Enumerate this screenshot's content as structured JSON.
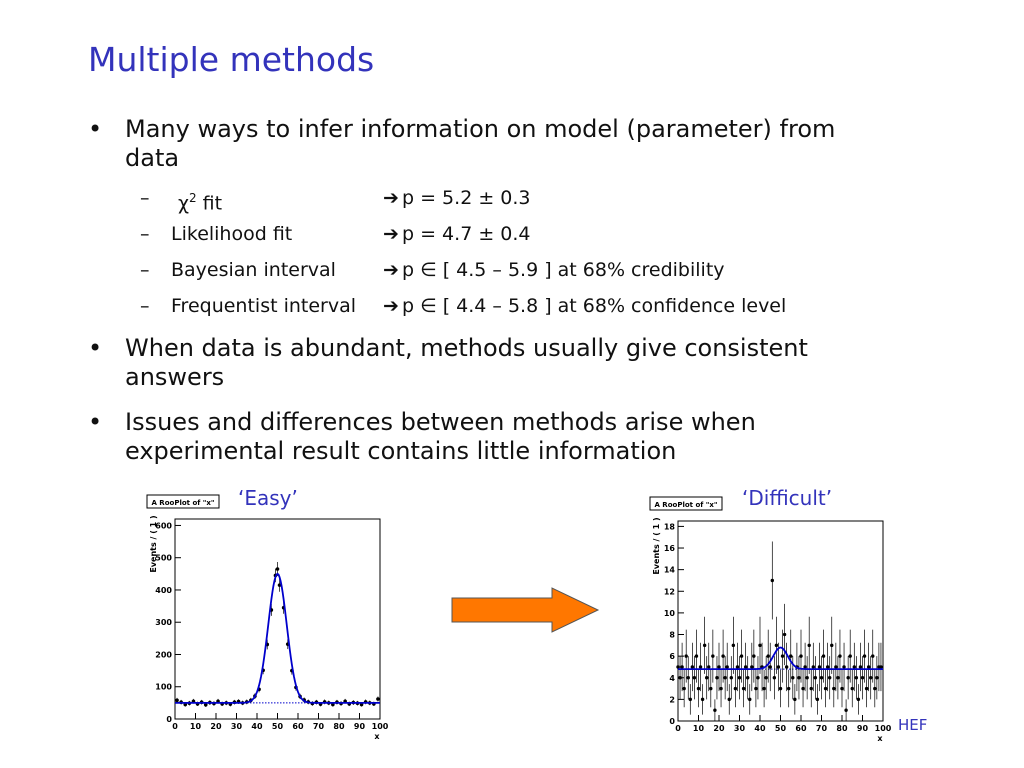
{
  "slide": {
    "title": "Multiple methods",
    "bullets": [
      "Many ways to infer information on model (parameter) from",
      "data",
      "When data is abundant, methods usually give consistent",
      "answers",
      "Issues and differences between methods arise when",
      "experimental result contains little information"
    ],
    "bullet_symbol": "•",
    "methods": [
      {
        "dash": "–",
        "name_prefix": "χ",
        "name_sup": "2",
        "name_suffix": " fit",
        "arrow": "➔",
        "result": "p = 5.2 ± 0.3"
      },
      {
        "dash": "–",
        "name_prefix": "Likelihood fit",
        "name_sup": "",
        "name_suffix": "",
        "arrow": "➔",
        "result": "p = 4.7 ± 0.4"
      },
      {
        "dash": "–",
        "name_prefix": "Bayesian interval",
        "name_sup": "",
        "name_suffix": "",
        "arrow": "➔",
        "result": "p ∈ [ 4.5 – 5.9 ] at 68% credibility"
      },
      {
        "dash": "–",
        "name_prefix": "Frequentist interval",
        "name_sup": "",
        "name_suffix": "",
        "arrow": "➔",
        "result": "p ∈ [ 4.4 – 5.8 ] at 68% confidence level"
      }
    ],
    "captions": {
      "easy": "‘Easy’",
      "difficult": "‘Difficult’"
    },
    "footer": "HEF",
    "colors": {
      "title": "#3333bb",
      "curve": "#0000cc",
      "arrow_fill": "#ff7700"
    }
  },
  "chart_data": [
    {
      "type": "scatter",
      "title": "A RooPlot of \"x\"",
      "xlabel": "x",
      "ylabel": "Events / ( 1 )",
      "xlim": [
        0,
        100
      ],
      "ylim": [
        0,
        620
      ],
      "xticks": [
        0,
        10,
        20,
        30,
        40,
        50,
        60,
        70,
        80,
        90,
        100
      ],
      "yticks": [
        0,
        100,
        200,
        300,
        400,
        500,
        600
      ],
      "model": {
        "background": 50,
        "peak_mean": 50,
        "peak_sigma": 4.5,
        "peak_amplitude": 400
      },
      "points": [
        [
          1,
          58
        ],
        [
          3,
          52
        ],
        [
          5,
          45
        ],
        [
          7,
          49
        ],
        [
          9,
          55
        ],
        [
          11,
          47
        ],
        [
          13,
          52
        ],
        [
          15,
          44
        ],
        [
          17,
          51
        ],
        [
          19,
          48
        ],
        [
          21,
          55
        ],
        [
          23,
          47
        ],
        [
          25,
          50
        ],
        [
          27,
          46
        ],
        [
          29,
          52
        ],
        [
          31,
          54
        ],
        [
          33,
          50
        ],
        [
          35,
          53
        ],
        [
          37,
          58
        ],
        [
          39,
          71
        ],
        [
          41,
          92
        ],
        [
          43,
          151
        ],
        [
          45,
          231
        ],
        [
          47,
          338
        ],
        [
          49,
          445
        ],
        [
          50,
          465
        ],
        [
          51,
          415
        ],
        [
          53,
          345
        ],
        [
          55,
          232
        ],
        [
          57,
          150
        ],
        [
          59,
          98
        ],
        [
          61,
          70
        ],
        [
          63,
          59
        ],
        [
          65,
          53
        ],
        [
          67,
          48
        ],
        [
          69,
          52
        ],
        [
          71,
          46
        ],
        [
          73,
          53
        ],
        [
          75,
          50
        ],
        [
          77,
          45
        ],
        [
          79,
          52
        ],
        [
          81,
          48
        ],
        [
          83,
          55
        ],
        [
          85,
          47
        ],
        [
          87,
          51
        ],
        [
          89,
          49
        ],
        [
          91,
          45
        ],
        [
          93,
          53
        ],
        [
          95,
          50
        ],
        [
          97,
          47
        ],
        [
          99,
          62
        ]
      ]
    },
    {
      "type": "scatter",
      "title": "A RooPlot of \"x\"",
      "xlabel": "x",
      "ylabel": "Events / ( 1 )",
      "xlim": [
        0,
        100
      ],
      "ylim": [
        0,
        18.5
      ],
      "xticks": [
        0,
        10,
        20,
        30,
        40,
        50,
        60,
        70,
        80,
        90,
        100
      ],
      "yticks": [
        0,
        2,
        4,
        6,
        8,
        10,
        12,
        14,
        16,
        18
      ],
      "model": {
        "background": 4.8,
        "peak_mean": 50,
        "peak_sigma": 3.5,
        "peak_amplitude": 2.0
      },
      "points": [
        [
          0,
          5
        ],
        [
          1,
          4
        ],
        [
          2,
          5
        ],
        [
          3,
          3
        ],
        [
          4,
          6
        ],
        [
          5,
          4
        ],
        [
          6,
          2
        ],
        [
          7,
          5
        ],
        [
          8,
          4
        ],
        [
          9,
          6
        ],
        [
          10,
          3
        ],
        [
          11,
          5
        ],
        [
          12,
          2
        ],
        [
          13,
          7
        ],
        [
          14,
          4
        ],
        [
          15,
          5
        ],
        [
          16,
          3
        ],
        [
          17,
          6
        ],
        [
          18,
          1
        ],
        [
          19,
          4
        ],
        [
          20,
          5
        ],
        [
          21,
          3
        ],
        [
          22,
          6
        ],
        [
          23,
          4
        ],
        [
          24,
          5
        ],
        [
          25,
          2
        ],
        [
          26,
          4
        ],
        [
          27,
          7
        ],
        [
          28,
          3
        ],
        [
          29,
          5
        ],
        [
          30,
          4
        ],
        [
          31,
          6
        ],
        [
          32,
          3
        ],
        [
          33,
          5
        ],
        [
          34,
          4
        ],
        [
          35,
          2
        ],
        [
          36,
          5
        ],
        [
          37,
          6
        ],
        [
          38,
          3
        ],
        [
          39,
          4
        ],
        [
          40,
          7
        ],
        [
          41,
          5
        ],
        [
          42,
          3
        ],
        [
          43,
          4
        ],
        [
          44,
          6
        ],
        [
          45,
          5
        ],
        [
          46,
          13
        ],
        [
          47,
          4
        ],
        [
          48,
          7
        ],
        [
          49,
          5
        ],
        [
          50,
          3
        ],
        [
          51,
          6
        ],
        [
          52,
          8
        ],
        [
          53,
          5
        ],
        [
          54,
          3
        ],
        [
          55,
          6
        ],
        [
          56,
          4
        ],
        [
          57,
          2
        ],
        [
          58,
          5
        ],
        [
          59,
          4
        ],
        [
          60,
          6
        ],
        [
          61,
          3
        ],
        [
          62,
          5
        ],
        [
          63,
          4
        ],
        [
          64,
          7
        ],
        [
          65,
          3
        ],
        [
          66,
          5
        ],
        [
          67,
          4
        ],
        [
          68,
          2
        ],
        [
          69,
          5
        ],
        [
          70,
          4
        ],
        [
          71,
          6
        ],
        [
          72,
          3
        ],
        [
          73,
          5
        ],
        [
          74,
          4
        ],
        [
          75,
          7
        ],
        [
          76,
          3
        ],
        [
          77,
          5
        ],
        [
          78,
          4
        ],
        [
          79,
          6
        ],
        [
          80,
          3
        ],
        [
          81,
          5
        ],
        [
          82,
          1
        ],
        [
          83,
          4
        ],
        [
          84,
          6
        ],
        [
          85,
          3
        ],
        [
          86,
          5
        ],
        [
          87,
          4
        ],
        [
          88,
          2
        ],
        [
          89,
          5
        ],
        [
          90,
          4
        ],
        [
          91,
          6
        ],
        [
          92,
          3
        ],
        [
          93,
          5
        ],
        [
          94,
          4
        ],
        [
          95,
          6
        ],
        [
          96,
          3
        ],
        [
          97,
          4
        ],
        [
          98,
          5
        ],
        [
          99,
          5
        ]
      ]
    }
  ]
}
